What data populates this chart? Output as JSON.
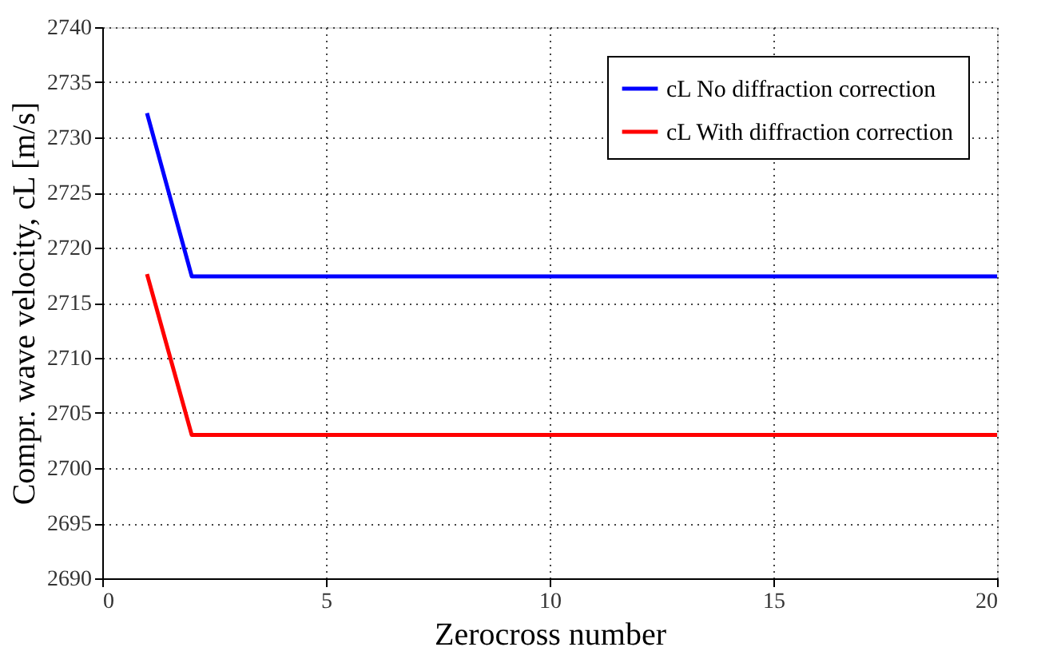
{
  "chart_data": {
    "type": "line",
    "xlabel": "Zerocross number",
    "ylabel": "Compr. wave velocity, cL [m/s]",
    "series": [
      {
        "name": "cL No diffraction correction",
        "color": "#0000ff",
        "x": [
          1,
          2,
          20
        ],
        "values": [
          2732.2,
          2717.4,
          2717.4
        ]
      },
      {
        "name": "cL With diffraction correction",
        "color": "#ff0000",
        "x": [
          1,
          2,
          20
        ],
        "values": [
          2717.6,
          2703.0,
          2703.0
        ]
      }
    ],
    "xlim": [
      0,
      20
    ],
    "xticks": [
      0,
      5,
      10,
      15,
      20
    ],
    "ylim": [
      2690,
      2740
    ],
    "yticks": [
      2690,
      2695,
      2700,
      2705,
      2710,
      2715,
      2720,
      2725,
      2730,
      2735,
      2740
    ],
    "grid": true,
    "legend": "top right",
    "marker": "none",
    "line_style": "solid"
  }
}
